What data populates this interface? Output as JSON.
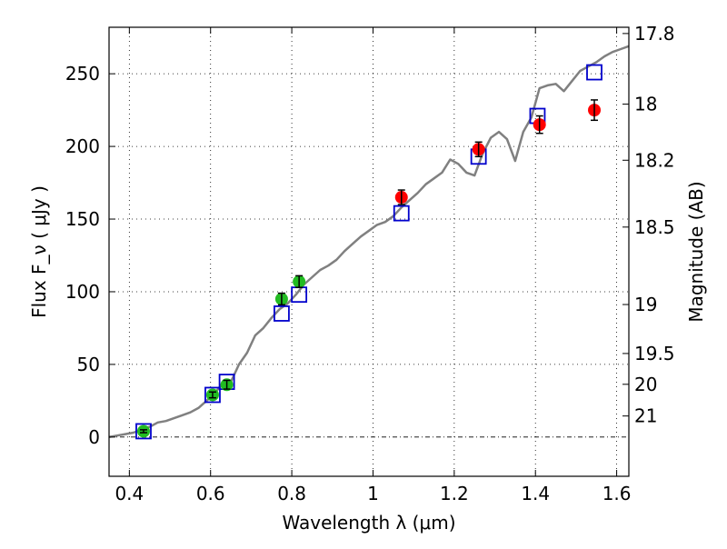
{
  "chart_data": {
    "type": "scatter",
    "xlabel": "Wavelength  λ (μm)",
    "ylabel": "Flux  F_ν  ( μJy )",
    "y2label": "Magnitude (AB)",
    "xlim": [
      0.35,
      1.63
    ],
    "ylim": [
      -27,
      282
    ],
    "grid": true,
    "xticks": [
      {
        "value": 0.4,
        "label": "0.4"
      },
      {
        "value": 0.6,
        "label": "0.6"
      },
      {
        "value": 0.8,
        "label": "0.8"
      },
      {
        "value": 1.0,
        "label": "1"
      },
      {
        "value": 1.2,
        "label": "1.2"
      },
      {
        "value": 1.4,
        "label": "1.4"
      },
      {
        "value": 1.6,
        "label": "1.6"
      }
    ],
    "yticks": [
      {
        "value": 0,
        "label": "0"
      },
      {
        "value": 50,
        "label": "50"
      },
      {
        "value": 100,
        "label": "100"
      },
      {
        "value": 150,
        "label": "150"
      },
      {
        "value": 200,
        "label": "200"
      },
      {
        "value": 250,
        "label": "250"
      }
    ],
    "y2ticks": [
      {
        "flux": 277.7,
        "label": "17.8"
      },
      {
        "flux": 229.1,
        "label": "18"
      },
      {
        "flux": 190.5,
        "label": "18.2"
      },
      {
        "flux": 144.5,
        "label": "18.5"
      },
      {
        "flux": 91.2,
        "label": "19"
      },
      {
        "flux": 57.5,
        "label": "19.5"
      },
      {
        "flux": 36.3,
        "label": "20"
      },
      {
        "flux": 14.5,
        "label": "21"
      }
    ],
    "colors": {
      "model": "#808080",
      "model_photometry": "#0000cc",
      "optical_points": "#22bb22",
      "nir_points": "#ff0000",
      "errorbar": "#000000"
    },
    "series": [
      {
        "kind": "line",
        "x": [
          0.35,
          0.37,
          0.39,
          0.41,
          0.43,
          0.45,
          0.47,
          0.49,
          0.51,
          0.53,
          0.55,
          0.57,
          0.59,
          0.61,
          0.63,
          0.65,
          0.67,
          0.69,
          0.71,
          0.73,
          0.75,
          0.77,
          0.79,
          0.81,
          0.83,
          0.85,
          0.87,
          0.89,
          0.91,
          0.93,
          0.95,
          0.97,
          0.99,
          1.01,
          1.03,
          1.05,
          1.07,
          1.09,
          1.11,
          1.13,
          1.15,
          1.17,
          1.19,
          1.21,
          1.23,
          1.25,
          1.27,
          1.29,
          1.31,
          1.33,
          1.35,
          1.37,
          1.39,
          1.41,
          1.43,
          1.45,
          1.47,
          1.49,
          1.51,
          1.53,
          1.55,
          1.57,
          1.59,
          1.61,
          1.63
        ],
        "y": [
          0,
          1,
          2,
          3,
          5,
          7,
          10,
          11,
          13,
          15,
          17,
          20,
          25,
          30,
          37,
          38,
          50,
          58,
          70,
          75,
          82,
          88,
          92,
          98,
          105,
          110,
          115,
          118,
          122,
          128,
          133,
          138,
          142,
          146,
          148,
          152,
          158,
          163,
          168,
          174,
          178,
          182,
          191,
          188,
          182,
          180,
          195,
          206,
          210,
          205,
          190,
          210,
          220,
          240,
          242,
          243,
          238,
          245,
          252,
          255,
          258,
          262,
          265,
          267,
          269
        ]
      },
      {
        "kind": "open-square",
        "x": [
          0.435,
          0.605,
          0.64,
          0.775,
          0.818,
          1.07,
          1.26,
          1.405,
          1.545
        ],
        "y": [
          4,
          29,
          38,
          85,
          98,
          154,
          193,
          221,
          251
        ]
      },
      {
        "kind": "filled-circle",
        "x": [
          0.435,
          0.605,
          0.64,
          0.775,
          0.818
        ],
        "y": [
          4,
          29,
          36,
          95,
          107
        ],
        "yerr": [
          1,
          2,
          3,
          4,
          4
        ]
      },
      {
        "kind": "filled-circle",
        "x": [
          1.07,
          1.26,
          1.41,
          1.545
        ],
        "y": [
          165,
          198,
          215,
          225
        ],
        "yerr": [
          5,
          5,
          6,
          7
        ]
      }
    ]
  }
}
